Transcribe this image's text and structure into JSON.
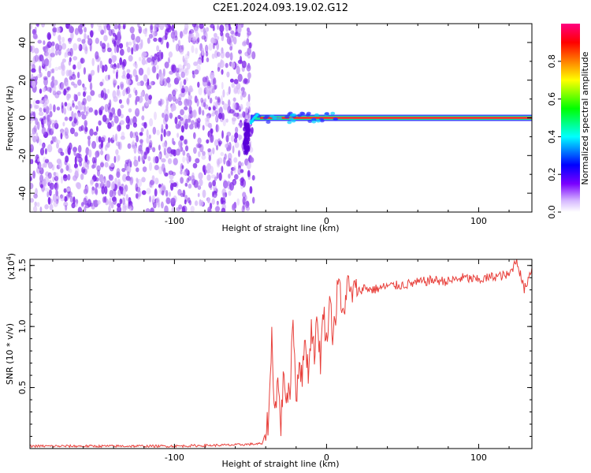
{
  "title": "C2E1.2024.093.19.02.G12",
  "chart_data": [
    {
      "type": "heatmap",
      "xlabel": "Height of straight line (km)",
      "ylabel": "Frequency (Hz)",
      "xlim": [
        -195,
        135
      ],
      "ylim": [
        -50,
        50
      ],
      "xticks": [
        -100,
        0,
        100
      ],
      "yticks": [
        -40,
        -20,
        0,
        20,
        40
      ],
      "noise_region_x": [
        -195,
        -50
      ],
      "signal_line": {
        "x_start": -50,
        "x_end": 135,
        "frequency": 0
      },
      "colorbar": {
        "label": "Normalized spectral amplitude",
        "range": [
          0,
          1
        ],
        "ticks": [
          0.0,
          0.2,
          0.4,
          0.6,
          0.8
        ],
        "colors": [
          "#ffffff",
          "#7a00ff",
          "#0000ff",
          "#00ffff",
          "#00ff00",
          "#ffff00",
          "#ff8000",
          "#ff0000",
          "#ff0080"
        ]
      }
    },
    {
      "type": "line",
      "xlabel": "Height of straight line (km)",
      "ylabel": "SNR (10 * v/v)",
      "yunit_multiplier": "(x10",
      "yunit_exponent": "4",
      "yunit_close": ")",
      "xlim": [
        -195,
        135
      ],
      "ylim": [
        0,
        1.55
      ],
      "xticks": [
        -100,
        0,
        100
      ],
      "yticks": [
        0.5,
        1.0,
        1.5
      ],
      "ytick_labels": [
        "0.5",
        "1.0",
        "1.5"
      ],
      "line_color": "#e8413c",
      "series": [
        {
          "x": [
            -195,
            -150,
            -100,
            -60,
            -42,
            -38,
            -36,
            -34,
            -32,
            -30,
            -28,
            -26,
            -24,
            -22,
            -20,
            -18,
            -16,
            -14,
            -12,
            -10,
            -8,
            -6,
            -4,
            -2,
            0,
            2,
            4,
            6,
            8,
            10,
            12,
            14,
            16,
            18,
            20,
            25,
            30,
            40,
            50,
            60,
            70,
            80,
            90,
            100,
            110,
            120,
            125,
            130,
            135
          ],
          "y": [
            0.02,
            0.02,
            0.02,
            0.03,
            0.04,
            0.25,
            0.92,
            0.3,
            0.55,
            0.2,
            0.65,
            0.35,
            0.5,
            1.1,
            0.4,
            0.75,
            0.55,
            0.95,
            0.6,
            1.0,
            0.8,
            1.05,
            0.72,
            1.15,
            0.85,
            1.25,
            0.95,
            1.1,
            1.45,
            1.05,
            1.2,
            1.35,
            1.25,
            1.3,
            1.28,
            1.32,
            1.3,
            1.33,
            1.34,
            1.36,
            1.38,
            1.37,
            1.4,
            1.38,
            1.41,
            1.42,
            1.55,
            1.3,
            1.48
          ]
        }
      ]
    }
  ]
}
